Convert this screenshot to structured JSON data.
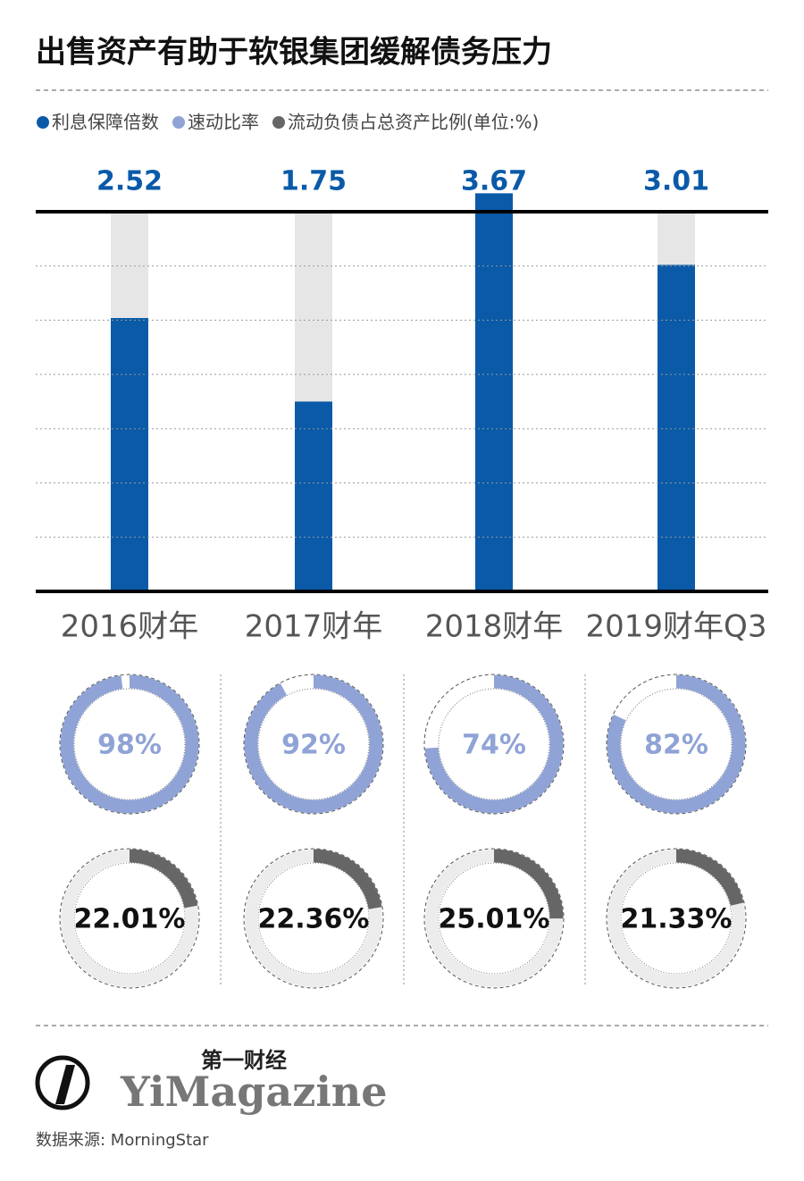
{
  "chart_data": [
    {
      "type": "bar",
      "title": "出售资产有助于软银集团缓解债务压力",
      "categories": [
        "2016财年",
        "2017财年",
        "2018财年",
        "2019财年Q3"
      ],
      "series": [
        {
          "name": "利息保障倍数",
          "color": "#0a5aa8",
          "values": [
            2.52,
            1.75,
            3.67,
            3.01
          ]
        }
      ],
      "ylim": [
        0,
        3.5
      ],
      "yticks": [
        0,
        0.5,
        1,
        1.5,
        2,
        2.5,
        3,
        3.5
      ],
      "grid": true
    },
    {
      "type": "donut",
      "series": [
        {
          "name": "速动比率",
          "color": "#8fa3d6",
          "values": [
            98,
            92,
            74,
            82
          ],
          "value_labels": [
            "98%",
            "92%",
            "74%",
            "82%"
          ]
        }
      ]
    },
    {
      "type": "donut",
      "series": [
        {
          "name": "流动负债占总资产比例(单位:%)",
          "color": "#666666",
          "values": [
            22.01,
            22.36,
            25.01,
            21.33
          ],
          "value_labels": [
            "22.01%",
            "22.36%",
            "25.01%",
            "21.33%"
          ]
        }
      ]
    }
  ],
  "source": "数据来源: MorningStar",
  "brand": {
    "cn": "第一财经",
    "en": "YiMagazine"
  }
}
